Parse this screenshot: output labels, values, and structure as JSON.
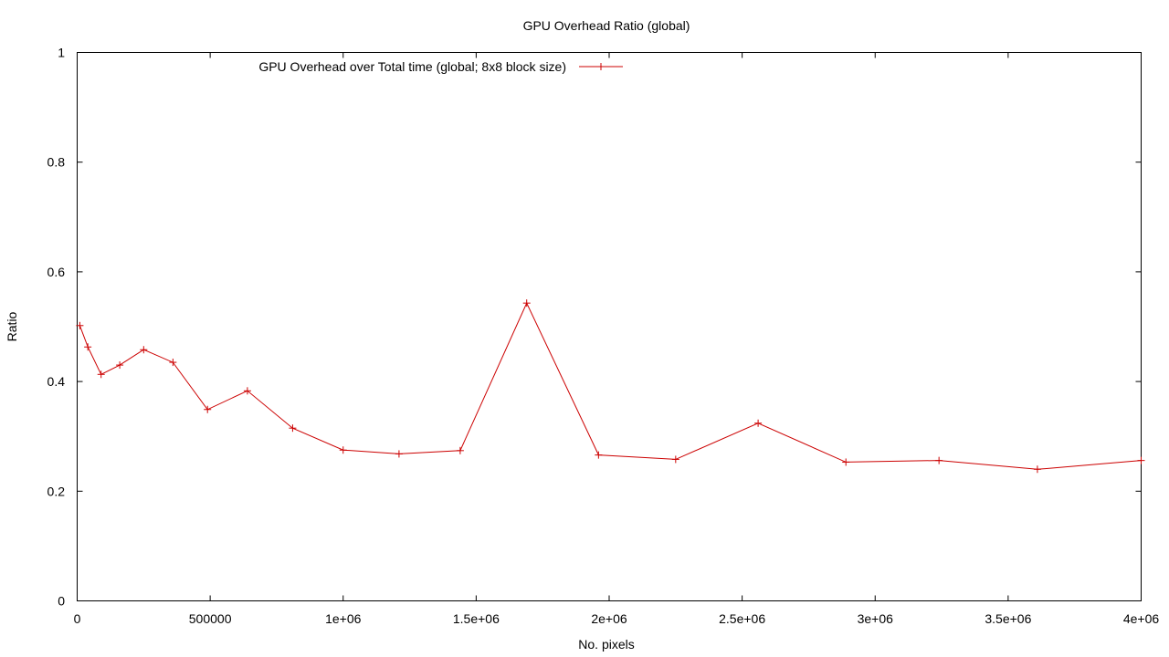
{
  "chart_data": {
    "type": "line",
    "title": "GPU Overhead Ratio (global)",
    "xlabel": "No. pixels",
    "ylabel": "Ratio",
    "xlim": [
      0,
      4000000
    ],
    "ylim": [
      0,
      1
    ],
    "x_ticks": [
      {
        "value": 0,
        "label": "0"
      },
      {
        "value": 500000,
        "label": "500000"
      },
      {
        "value": 1000000,
        "label": "1e+06"
      },
      {
        "value": 1500000,
        "label": "1.5e+06"
      },
      {
        "value": 2000000,
        "label": "2e+06"
      },
      {
        "value": 2500000,
        "label": "2.5e+06"
      },
      {
        "value": 3000000,
        "label": "3e+06"
      },
      {
        "value": 3500000,
        "label": "3.5e+06"
      },
      {
        "value": 4000000,
        "label": "4e+06"
      }
    ],
    "y_ticks": [
      {
        "value": 0,
        "label": "0"
      },
      {
        "value": 0.2,
        "label": "0.2"
      },
      {
        "value": 0.4,
        "label": "0.4"
      },
      {
        "value": 0.6,
        "label": "0.6"
      },
      {
        "value": 0.8,
        "label": "0.8"
      },
      {
        "value": 1,
        "label": "1"
      }
    ],
    "grid": false,
    "legend_position": "top-left",
    "series": [
      {
        "name": "GPU Overhead over Total time (global; 8x8 block size)",
        "color": "#cc0000",
        "marker": "plus",
        "points": [
          {
            "x": 10000,
            "y": 0.502
          },
          {
            "x": 40000,
            "y": 0.463
          },
          {
            "x": 90000,
            "y": 0.413
          },
          {
            "x": 160000,
            "y": 0.43
          },
          {
            "x": 250000,
            "y": 0.458
          },
          {
            "x": 360000,
            "y": 0.435
          },
          {
            "x": 490000,
            "y": 0.349
          },
          {
            "x": 640000,
            "y": 0.383
          },
          {
            "x": 810000,
            "y": 0.315
          },
          {
            "x": 1000000,
            "y": 0.275
          },
          {
            "x": 1210000,
            "y": 0.268
          },
          {
            "x": 1440000,
            "y": 0.274
          },
          {
            "x": 1690000,
            "y": 0.543
          },
          {
            "x": 1960000,
            "y": 0.266
          },
          {
            "x": 2250000,
            "y": 0.258
          },
          {
            "x": 2560000,
            "y": 0.324
          },
          {
            "x": 2890000,
            "y": 0.253
          },
          {
            "x": 3240000,
            "y": 0.256
          },
          {
            "x": 3610000,
            "y": 0.24
          },
          {
            "x": 4000000,
            "y": 0.256
          }
        ]
      }
    ]
  }
}
